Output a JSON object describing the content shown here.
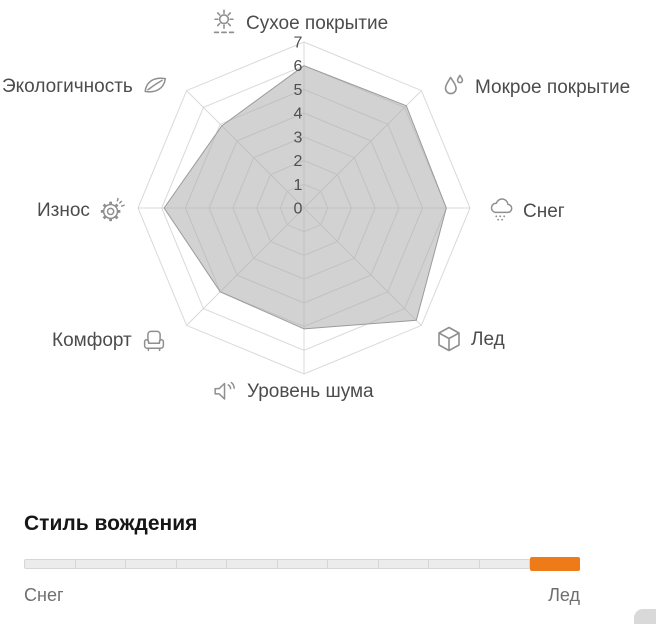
{
  "chart_data": {
    "type": "radar",
    "categories": [
      "Сухое покрытие",
      "Мокрое покрытие",
      "Снег",
      "Лед",
      "Уровень шума",
      "Комфорт",
      "Износ",
      "Экологичность"
    ],
    "values": [
      6,
      6.1,
      6,
      6.7,
      5.1,
      5,
      5.9,
      4.9
    ],
    "axis_icons": [
      "sun-icon",
      "water-drops-icon",
      "snow-cloud-icon",
      "ice-cube-icon",
      "speaker-icon",
      "armchair-icon",
      "gear-icon",
      "leaf-icon"
    ],
    "scale_min": 0,
    "scale_max": 7,
    "ticks": [
      0,
      1,
      2,
      3,
      4,
      5,
      6,
      7
    ],
    "grid_shape": "octagon",
    "legend_position": "none",
    "colors": {
      "grid": "#d9d9d9",
      "fill": "#adadad",
      "fill_opacity": 0.55,
      "stroke": "#9b9b9b",
      "tick_text": "#4f4f4f",
      "label_text": "#4c4c4c",
      "icon": "#8f8f8f"
    }
  },
  "driving_style": {
    "title": "Стиль вождения",
    "left_label": "Снег",
    "right_label": "Лед",
    "segments_total": 11,
    "active_segment_index": 10,
    "colors": {
      "track": "#ececec",
      "track_border": "#d6d6d6",
      "active": "#ee7b18",
      "label_text": "#6f6f6f",
      "title_text": "#161616"
    }
  }
}
